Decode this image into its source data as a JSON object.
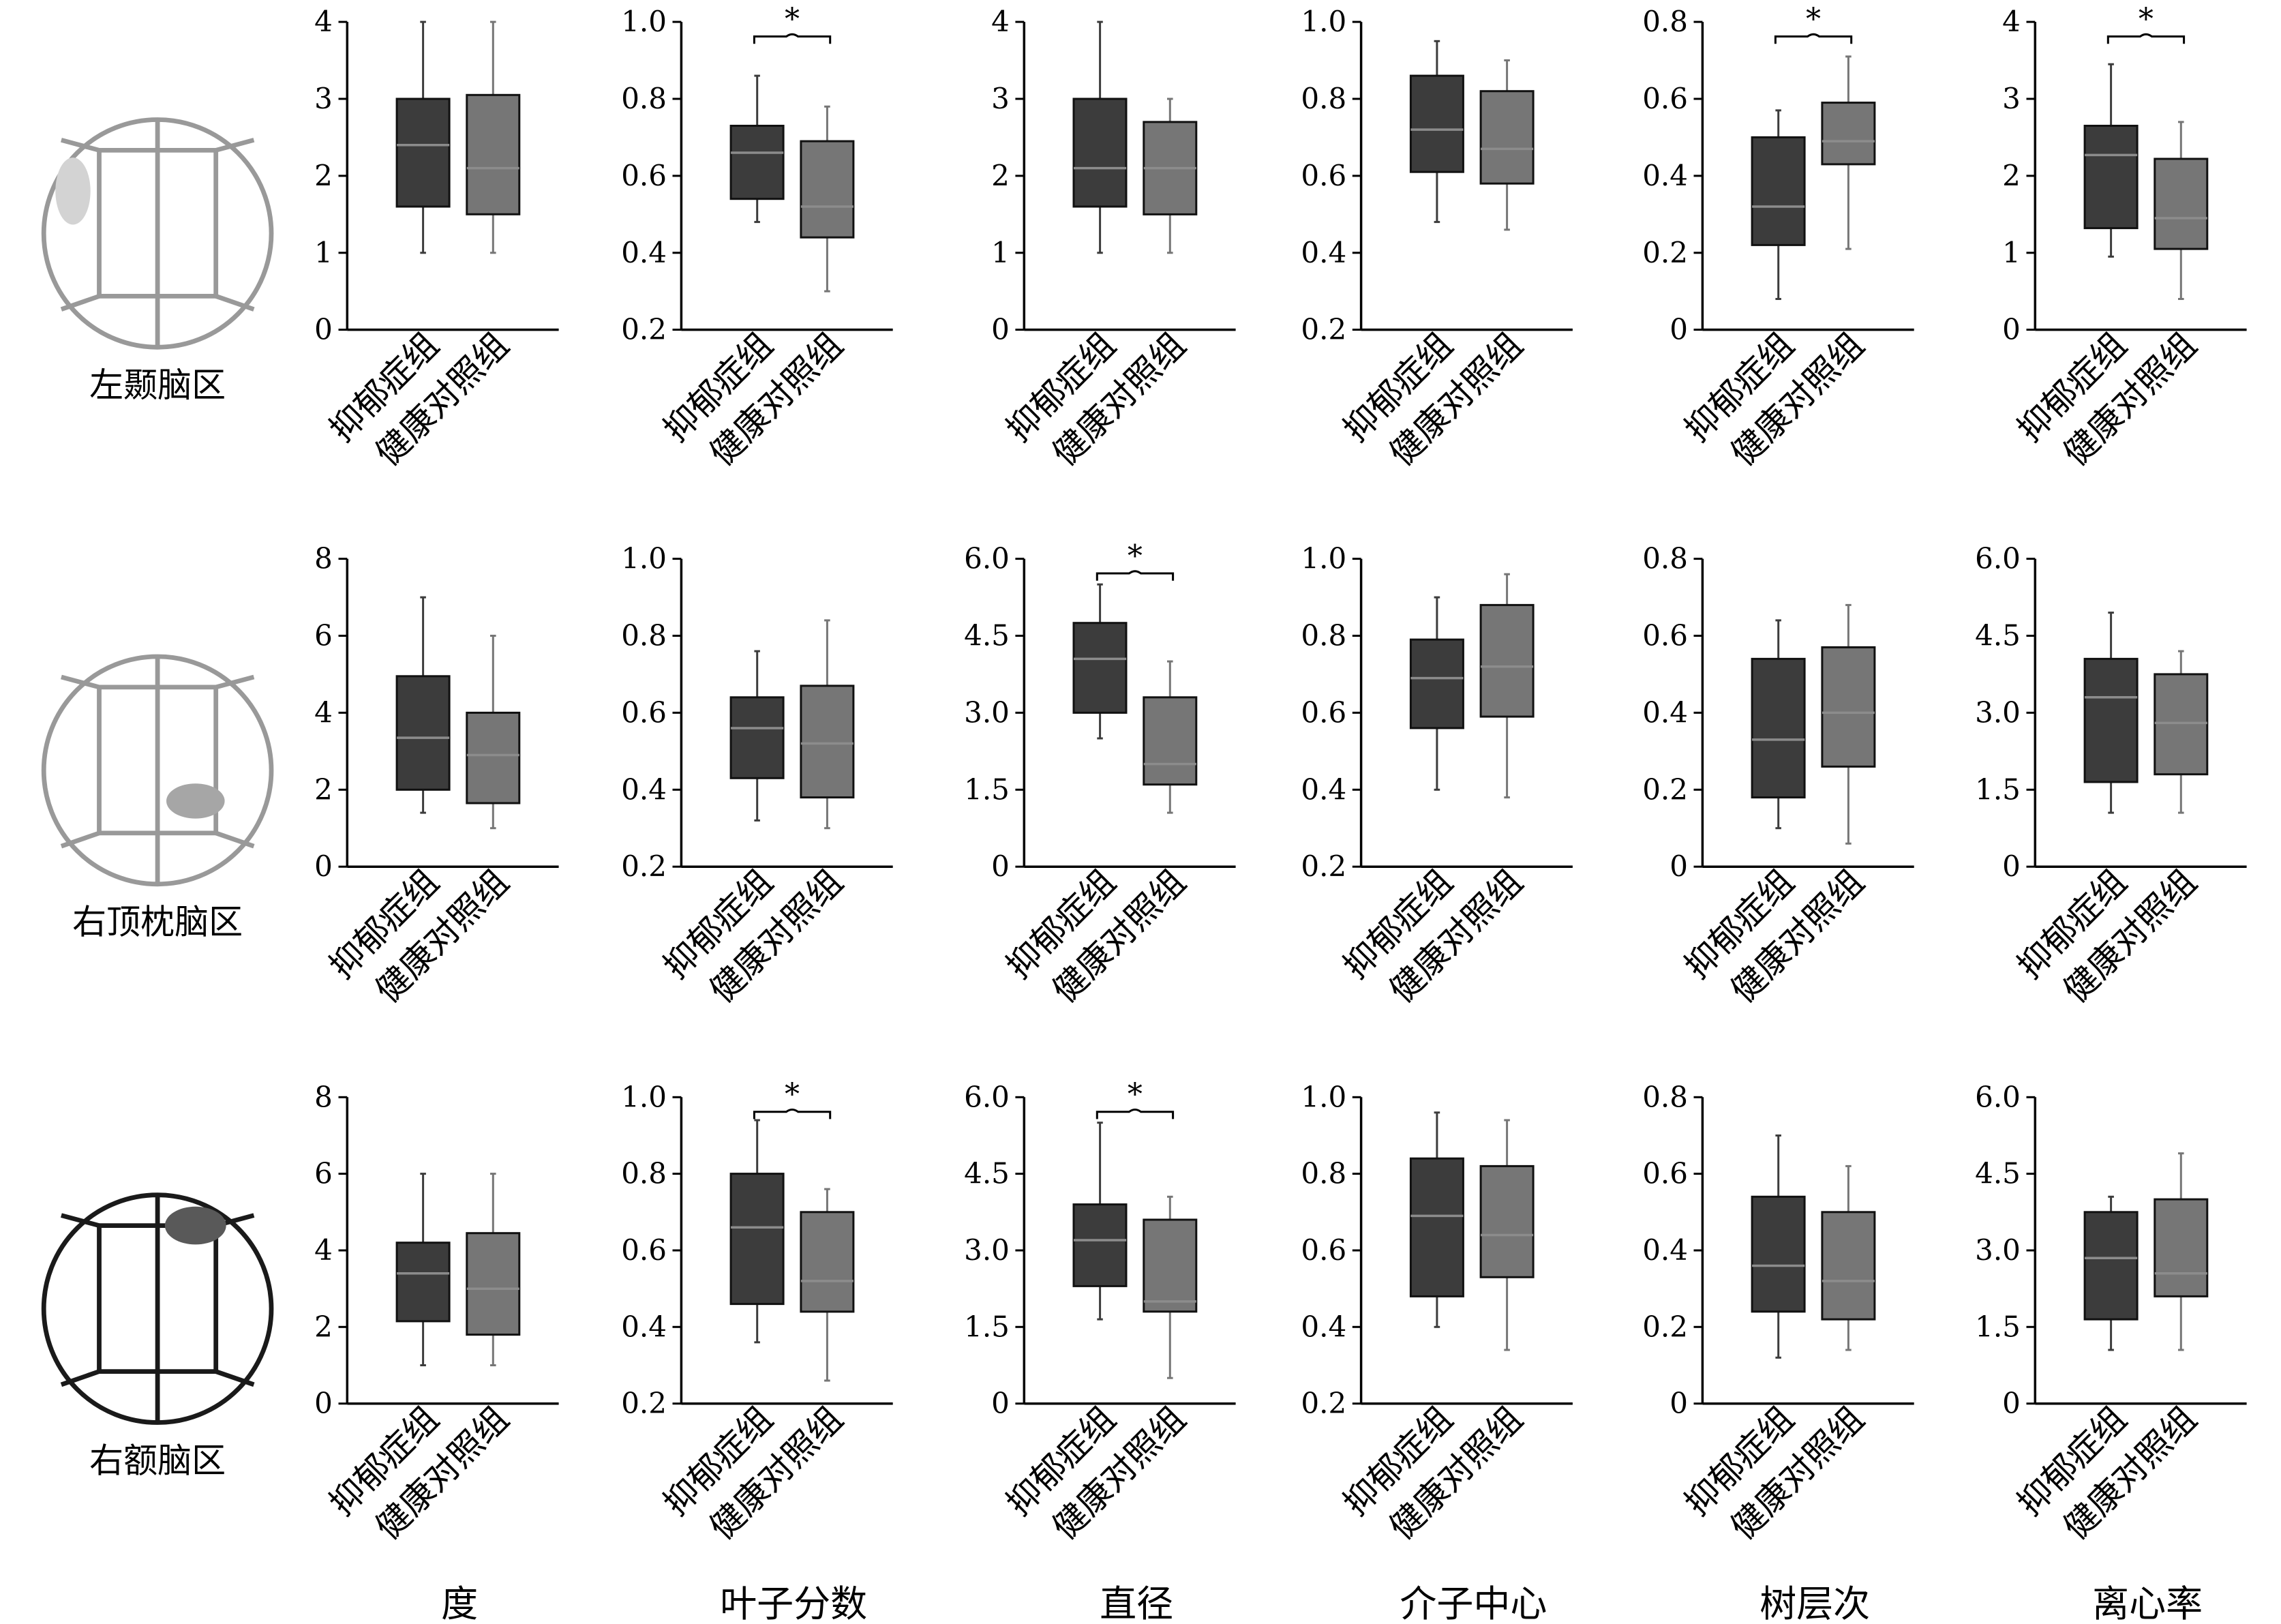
{
  "categories": [
    "抑郁症组",
    "健康对照组"
  ],
  "metrics": [
    "度",
    "叶子分数",
    "直径",
    "介子中心",
    "树层次",
    "离心率"
  ],
  "regions": [
    {
      "label": "左颞脑区",
      "icon": "left-temporal-region-icon",
      "frame_color": "#999999",
      "spot_color": "#d3d3d3",
      "highlight": "left-temporal"
    },
    {
      "label": "右顶枕脑区",
      "icon": "right-parieto-occipital-region-icon",
      "frame_color": "#999999",
      "spot_color": "#a6a6a6",
      "highlight": "right-parieto-occipital"
    },
    {
      "label": "右额脑区",
      "icon": "right-frontal-region-icon",
      "frame_color": "#1a1a1a",
      "spot_color": "#595959",
      "highlight": "right-frontal"
    }
  ],
  "colors": {
    "depression": "#3c3c3c",
    "control": "#767676",
    "median_line": "#8c8c8c",
    "axis": "#000000"
  },
  "significance_marker": "*",
  "chart_data": [
    {
      "type": "box",
      "row": 1,
      "col": 1,
      "region": "左颞脑区",
      "metric": "度",
      "ylim": [
        0,
        4
      ],
      "yticks": [
        "0",
        "1",
        "2",
        "3",
        "4"
      ],
      "significant": false,
      "series": [
        {
          "group": "抑郁症组",
          "min": 1,
          "q1": 1.6,
          "median": 2.4,
          "q3": 3,
          "max": 4
        },
        {
          "group": "健康对照组",
          "min": 1,
          "q1": 1.5,
          "median": 2.1,
          "q3": 3.05,
          "max": 4
        }
      ]
    },
    {
      "type": "box",
      "row": 1,
      "col": 2,
      "region": "左颞脑区",
      "metric": "叶子分数",
      "ylim": [
        0.2,
        1.0
      ],
      "yticks": [
        "0.2",
        "0.4",
        "0.6",
        "0.8",
        "1.0"
      ],
      "significant": true,
      "series": [
        {
          "group": "抑郁症组",
          "min": 0.48,
          "q1": 0.54,
          "median": 0.66,
          "q3": 0.73,
          "max": 0.86
        },
        {
          "group": "健康对照组",
          "min": 0.3,
          "q1": 0.44,
          "median": 0.52,
          "q3": 0.69,
          "max": 0.78
        }
      ]
    },
    {
      "type": "box",
      "row": 1,
      "col": 3,
      "region": "左颞脑区",
      "metric": "直径",
      "ylim": [
        0,
        4
      ],
      "yticks": [
        "0",
        "1",
        "2",
        "3",
        "4"
      ],
      "significant": false,
      "series": [
        {
          "group": "抑郁症组",
          "min": 1,
          "q1": 1.6,
          "median": 2.1,
          "q3": 3,
          "max": 4
        },
        {
          "group": "健康对照组",
          "min": 1,
          "q1": 1.5,
          "median": 2.1,
          "q3": 2.7,
          "max": 3
        }
      ]
    },
    {
      "type": "box",
      "row": 1,
      "col": 4,
      "region": "左颞脑区",
      "metric": "介子中心",
      "ylim": [
        0.2,
        1.0
      ],
      "yticks": [
        "0.2",
        "0.4",
        "0.6",
        "0.8",
        "1.0"
      ],
      "significant": false,
      "series": [
        {
          "group": "抑郁症组",
          "min": 0.48,
          "q1": 0.61,
          "median": 0.72,
          "q3": 0.86,
          "max": 0.95
        },
        {
          "group": "健康对照组",
          "min": 0.46,
          "q1": 0.58,
          "median": 0.67,
          "q3": 0.82,
          "max": 0.9
        }
      ]
    },
    {
      "type": "box",
      "row": 1,
      "col": 5,
      "region": "左颞脑区",
      "metric": "树层次",
      "ylim": [
        0,
        0.8
      ],
      "yticks": [
        "0",
        "0.2",
        "0.4",
        "0.6",
        "0.8"
      ],
      "significant": true,
      "series": [
        {
          "group": "抑郁症组",
          "min": 0.08,
          "q1": 0.22,
          "median": 0.32,
          "q3": 0.5,
          "max": 0.57
        },
        {
          "group": "健康对照组",
          "min": 0.21,
          "q1": 0.43,
          "median": 0.49,
          "q3": 0.59,
          "max": 0.71
        }
      ]
    },
    {
      "type": "box",
      "row": 1,
      "col": 6,
      "region": "左颞脑区",
      "metric": "离心率",
      "ylim": [
        0,
        4
      ],
      "yticks": [
        "0",
        "1",
        "2",
        "3",
        "4"
      ],
      "significant": true,
      "series": [
        {
          "group": "抑郁症组",
          "min": 0.95,
          "q1": 1.32,
          "median": 2.27,
          "q3": 2.65,
          "max": 3.45
        },
        {
          "group": "健康对照组",
          "min": 0.4,
          "q1": 1.05,
          "median": 1.45,
          "q3": 2.22,
          "max": 2.7
        }
      ]
    },
    {
      "type": "box",
      "row": 2,
      "col": 1,
      "region": "右顶枕脑区",
      "metric": "度",
      "ylim": [
        0,
        8
      ],
      "yticks": [
        "0",
        "2",
        "4",
        "6",
        "8"
      ],
      "significant": false,
      "series": [
        {
          "group": "抑郁症组",
          "min": 1.4,
          "q1": 2,
          "median": 3.35,
          "q3": 4.95,
          "max": 7
        },
        {
          "group": "健康对照组",
          "min": 1,
          "q1": 1.65,
          "median": 2.9,
          "q3": 4,
          "max": 6
        }
      ]
    },
    {
      "type": "box",
      "row": 2,
      "col": 2,
      "region": "右顶枕脑区",
      "metric": "叶子分数",
      "ylim": [
        0.2,
        1.0
      ],
      "yticks": [
        "0.2",
        "0.4",
        "0.6",
        "0.8",
        "1.0"
      ],
      "significant": false,
      "series": [
        {
          "group": "抑郁症组",
          "min": 0.32,
          "q1": 0.43,
          "median": 0.56,
          "q3": 0.64,
          "max": 0.76
        },
        {
          "group": "健康对照组",
          "min": 0.3,
          "q1": 0.38,
          "median": 0.52,
          "q3": 0.67,
          "max": 0.84
        }
      ]
    },
    {
      "type": "box",
      "row": 2,
      "col": 3,
      "region": "右顶枕脑区",
      "metric": "直径",
      "ylim": [
        0,
        6
      ],
      "yticks": [
        "0",
        "1.5",
        "3.0",
        "4.5",
        "6.0"
      ],
      "significant": true,
      "series": [
        {
          "group": "抑郁症组",
          "min": 2.5,
          "q1": 3,
          "median": 4.05,
          "q3": 4.75,
          "max": 5.5
        },
        {
          "group": "健康对照组",
          "min": 1.05,
          "q1": 1.6,
          "median": 2,
          "q3": 3.3,
          "max": 4
        }
      ]
    },
    {
      "type": "box",
      "row": 2,
      "col": 4,
      "region": "右顶枕脑区",
      "metric": "介子中心",
      "ylim": [
        0.2,
        1.0
      ],
      "yticks": [
        "0.2",
        "0.4",
        "0.6",
        "0.8",
        "1.0"
      ],
      "significant": false,
      "series": [
        {
          "group": "抑郁症组",
          "min": 0.4,
          "q1": 0.56,
          "median": 0.69,
          "q3": 0.79,
          "max": 0.9
        },
        {
          "group": "健康对照组",
          "min": 0.38,
          "q1": 0.59,
          "median": 0.72,
          "q3": 0.88,
          "max": 0.96
        }
      ]
    },
    {
      "type": "box",
      "row": 2,
      "col": 5,
      "region": "右顶枕脑区",
      "metric": "树层次",
      "ylim": [
        0,
        0.8
      ],
      "yticks": [
        "0",
        "0.2",
        "0.4",
        "0.6",
        "0.8"
      ],
      "significant": false,
      "series": [
        {
          "group": "抑郁症组",
          "min": 0.1,
          "q1": 0.18,
          "median": 0.33,
          "q3": 0.54,
          "max": 0.64
        },
        {
          "group": "健康对照组",
          "min": 0.06,
          "q1": 0.26,
          "median": 0.4,
          "q3": 0.57,
          "max": 0.68
        }
      ]
    },
    {
      "type": "box",
      "row": 2,
      "col": 6,
      "region": "右顶枕脑区",
      "metric": "离心率",
      "ylim": [
        0,
        6
      ],
      "yticks": [
        "0",
        "1.5",
        "3.0",
        "4.5",
        "6.0"
      ],
      "significant": false,
      "series": [
        {
          "group": "抑郁症组",
          "min": 1.05,
          "q1": 1.65,
          "median": 3.3,
          "q3": 4.05,
          "max": 4.95
        },
        {
          "group": "健康对照组",
          "min": 1.05,
          "q1": 1.8,
          "median": 2.8,
          "q3": 3.75,
          "max": 4.2
        }
      ]
    },
    {
      "type": "box",
      "row": 3,
      "col": 1,
      "region": "右额脑区",
      "metric": "度",
      "ylim": [
        0,
        8
      ],
      "yticks": [
        "0",
        "2",
        "4",
        "6",
        "8"
      ],
      "significant": false,
      "series": [
        {
          "group": "抑郁症组",
          "min": 1,
          "q1": 2.15,
          "median": 3.4,
          "q3": 4.2,
          "max": 6
        },
        {
          "group": "健康对照组",
          "min": 1,
          "q1": 1.8,
          "median": 3,
          "q3": 4.45,
          "max": 6
        }
      ]
    },
    {
      "type": "box",
      "row": 3,
      "col": 2,
      "region": "右额脑区",
      "metric": "叶子分数",
      "ylim": [
        0.2,
        1.0
      ],
      "yticks": [
        "0.2",
        "0.4",
        "0.6",
        "0.8",
        "1.0"
      ],
      "significant": true,
      "series": [
        {
          "group": "抑郁症组",
          "min": 0.36,
          "q1": 0.46,
          "median": 0.66,
          "q3": 0.8,
          "max": 0.94
        },
        {
          "group": "健康对照组",
          "min": 0.26,
          "q1": 0.44,
          "median": 0.52,
          "q3": 0.7,
          "max": 0.76
        }
      ]
    },
    {
      "type": "box",
      "row": 3,
      "col": 3,
      "region": "右额脑区",
      "metric": "直径",
      "ylim": [
        0,
        6
      ],
      "yticks": [
        "0",
        "1.5",
        "3.0",
        "4.5",
        "6.0"
      ],
      "significant": true,
      "series": [
        {
          "group": "抑郁症组",
          "min": 1.65,
          "q1": 2.3,
          "median": 3.2,
          "q3": 3.9,
          "max": 5.5
        },
        {
          "group": "健康对照组",
          "min": 0.5,
          "q1": 1.8,
          "median": 2,
          "q3": 3.6,
          "max": 4.05
        }
      ]
    },
    {
      "type": "box",
      "row": 3,
      "col": 4,
      "region": "右额脑区",
      "metric": "介子中心",
      "ylim": [
        0.2,
        1.0
      ],
      "yticks": [
        "0.2",
        "0.4",
        "0.6",
        "0.8",
        "1.0"
      ],
      "significant": false,
      "series": [
        {
          "group": "抑郁症组",
          "min": 0.4,
          "q1": 0.48,
          "median": 0.69,
          "q3": 0.84,
          "max": 0.96
        },
        {
          "group": "健康对照组",
          "min": 0.34,
          "q1": 0.53,
          "median": 0.64,
          "q3": 0.82,
          "max": 0.94
        }
      ]
    },
    {
      "type": "box",
      "row": 3,
      "col": 5,
      "region": "右额脑区",
      "metric": "树层次",
      "ylim": [
        0,
        0.8
      ],
      "yticks": [
        "0",
        "0.2",
        "0.4",
        "0.6",
        "0.8"
      ],
      "significant": false,
      "series": [
        {
          "group": "抑郁症组",
          "min": 0.12,
          "q1": 0.24,
          "median": 0.36,
          "q3": 0.54,
          "max": 0.7
        },
        {
          "group": "健康对照组",
          "min": 0.14,
          "q1": 0.22,
          "median": 0.32,
          "q3": 0.5,
          "max": 0.62
        }
      ]
    },
    {
      "type": "box",
      "row": 3,
      "col": 6,
      "region": "右额脑区",
      "metric": "离心率",
      "ylim": [
        0,
        6
      ],
      "yticks": [
        "0",
        "1.5",
        "3.0",
        "4.5",
        "6.0"
      ],
      "significant": false,
      "series": [
        {
          "group": "抑郁症组",
          "min": 1.05,
          "q1": 1.65,
          "median": 2.85,
          "q3": 3.75,
          "max": 4.05
        },
        {
          "group": "健康对照组",
          "min": 1.05,
          "q1": 2.1,
          "median": 2.55,
          "q3": 4,
          "max": 4.9
        }
      ]
    }
  ]
}
